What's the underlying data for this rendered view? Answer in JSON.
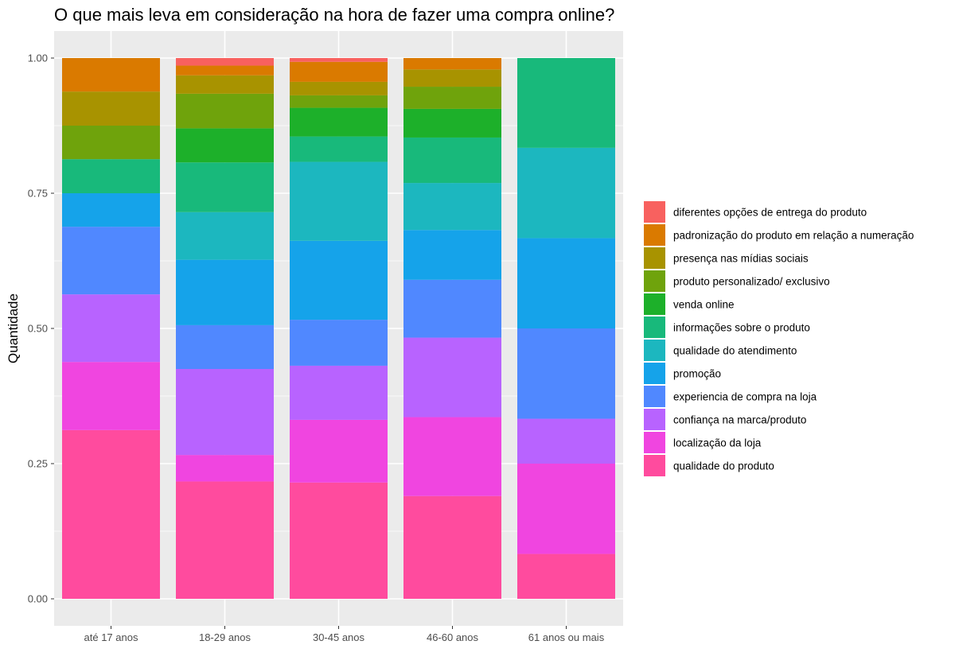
{
  "chart_data": {
    "type": "bar",
    "stacked": true,
    "normalized": true,
    "title": "O que mais leva em consideração na hora de fazer uma compra online?",
    "xlabel": "",
    "ylabel": "Quantidade",
    "ylim": [
      0,
      1
    ],
    "yticks": [
      "0.00",
      "0.25",
      "0.50",
      "0.75",
      "1.00"
    ],
    "ytick_values": [
      0,
      0.25,
      0.5,
      0.75,
      1.0
    ],
    "grid": true,
    "legend_position": "right",
    "categories": [
      "até 17 anos",
      "18-29 anos",
      "30-45 anos",
      "46-60 anos",
      "61 anos ou mais"
    ],
    "series": [
      {
        "name": "qualidade do produto",
        "color": "#FF4B9E",
        "values": [
          0.312,
          0.217,
          0.215,
          0.19,
          0.083
        ]
      },
      {
        "name": "localização da loja",
        "color": "#F045E0",
        "values": [
          0.126,
          0.049,
          0.116,
          0.146,
          0.167
        ]
      },
      {
        "name": "confiança na marca/produto",
        "color": "#B863FF",
        "values": [
          0.125,
          0.159,
          0.1,
          0.147,
          0.083
        ]
      },
      {
        "name": "experiencia de compra na loja",
        "color": "#5088FF",
        "values": [
          0.125,
          0.081,
          0.085,
          0.107,
          0.167
        ]
      },
      {
        "name": "promoção",
        "color": "#15A3EA",
        "values": [
          0.062,
          0.121,
          0.146,
          0.092,
          0.167
        ]
      },
      {
        "name": "qualidade do atendimento",
        "color": "#1CB7BF",
        "values": [
          0.0,
          0.088,
          0.146,
          0.087,
          0.167
        ]
      },
      {
        "name": "informações sobre o produto",
        "color": "#18B97B",
        "values": [
          0.063,
          0.092,
          0.047,
          0.084,
          0.166
        ]
      },
      {
        "name": "venda online",
        "color": "#1DB02A",
        "values": [
          0.0,
          0.063,
          0.053,
          0.053,
          0.0
        ]
      },
      {
        "name": "produto personalizado/ exclusivo",
        "color": "#6FA30C",
        "values": [
          0.062,
          0.064,
          0.023,
          0.041,
          0.0
        ]
      },
      {
        "name": "presença nas mídias sociais",
        "color": "#A89300",
        "values": [
          0.063,
          0.034,
          0.025,
          0.032,
          0.0
        ]
      },
      {
        "name": "padronização do produto em relação a numeração",
        "color": "#DA7A00",
        "values": [
          0.062,
          0.018,
          0.037,
          0.021,
          0.0
        ]
      },
      {
        "name": "diferentes opções de entrega do produto",
        "color": "#F8615F",
        "values": [
          0.0,
          0.014,
          0.007,
          0.0,
          0.0
        ]
      }
    ]
  }
}
